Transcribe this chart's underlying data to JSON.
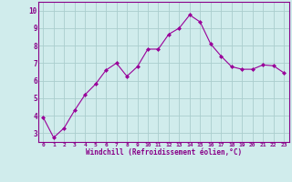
{
  "x": [
    0,
    1,
    2,
    3,
    4,
    5,
    6,
    7,
    8,
    9,
    10,
    11,
    12,
    13,
    14,
    15,
    16,
    17,
    18,
    19,
    20,
    21,
    22,
    23
  ],
  "y": [
    3.9,
    2.75,
    3.3,
    4.3,
    5.2,
    5.8,
    6.6,
    7.0,
    6.25,
    6.8,
    7.8,
    7.8,
    8.65,
    9.0,
    9.75,
    9.35,
    8.1,
    7.4,
    6.8,
    6.65,
    6.65,
    6.9,
    6.85,
    6.45
  ],
  "line_color": "#990099",
  "marker": "D",
  "marker_size": 2.0,
  "bg_color": "#d0ecec",
  "grid_color": "#aacece",
  "ylabel_values": [
    3,
    4,
    5,
    6,
    7,
    8,
    9,
    10
  ],
  "ylim": [
    2.5,
    10.5
  ],
  "xlim": [
    -0.5,
    23.5
  ],
  "xlabel": "Windchill (Refroidissement éolien,°C)",
  "xlabel_color": "#880088",
  "tick_color": "#880088",
  "border_color": "#880088",
  "xtick_labels": [
    "0",
    "1",
    "2",
    "3",
    "4",
    "5",
    "6",
    "7",
    "8",
    "9",
    "10",
    "11",
    "12",
    "13",
    "14",
    "15",
    "16",
    "17",
    "18",
    "19",
    "20",
    "21",
    "22",
    "23"
  ]
}
